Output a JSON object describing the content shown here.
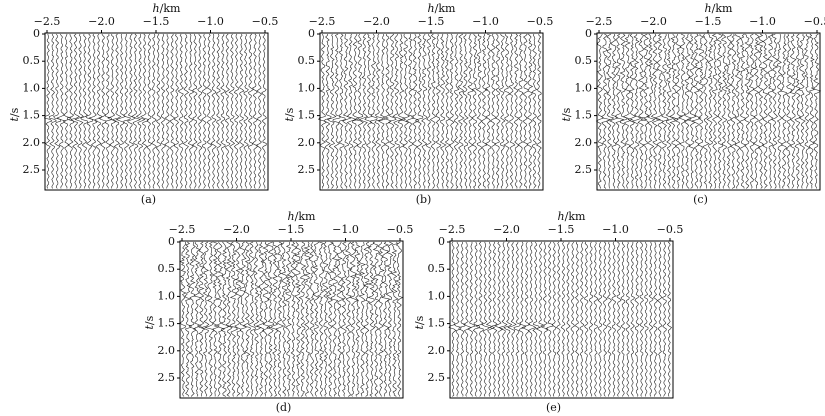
{
  "panels": [
    {
      "caption": "(a)",
      "x_label_var": "h",
      "x_label_unit": "/km",
      "y_label_var": "t",
      "y_label_unit": "/s",
      "xticks": [
        "−2.5",
        "−2.0",
        "−1.5",
        "−1.0",
        "−0.5"
      ],
      "yticks": [
        "0",
        "0.5",
        "1.0",
        "1.5",
        "2.0",
        "2.5"
      ]
    },
    {
      "caption": "(b)",
      "x_label_var": "h",
      "x_label_unit": "/km",
      "y_label_var": "t",
      "y_label_unit": "/s",
      "xticks": [
        "−2.5",
        "−2.0",
        "−1.5",
        "−1.0",
        "−0.5"
      ],
      "yticks": [
        "0",
        "0.5",
        "1.0",
        "1.5",
        "2.0",
        "2.5"
      ]
    },
    {
      "caption": "(c)",
      "x_label_var": "h",
      "x_label_unit": "/km",
      "y_label_var": "t",
      "y_label_unit": "/s",
      "xticks": [
        "−2.5",
        "−2.0",
        "−1.5",
        "−1.0",
        "−0.5"
      ],
      "yticks": [
        "0",
        "0.5",
        "1.0",
        "1.5",
        "2.0",
        "2.5"
      ]
    },
    {
      "caption": "(d)",
      "x_label_var": "h",
      "x_label_unit": "/km",
      "y_label_var": "t",
      "y_label_unit": "/s",
      "xticks": [
        "−2.5",
        "−2.0",
        "−1.5",
        "−1.0",
        "−0.5"
      ],
      "yticks": [
        "0",
        "0.5",
        "1.0",
        "1.5",
        "2.0",
        "2.5"
      ]
    },
    {
      "caption": "(e)",
      "x_label_var": "h",
      "x_label_unit": "/km",
      "y_label_var": "t",
      "y_label_unit": "/s",
      "xticks": [
        "−2.5",
        "−2.0",
        "−1.5",
        "−1.0",
        "−0.5"
      ],
      "yticks": [
        "0",
        "0.5",
        "1.0",
        "1.5",
        "2.0",
        "2.5"
      ]
    }
  ]
}
